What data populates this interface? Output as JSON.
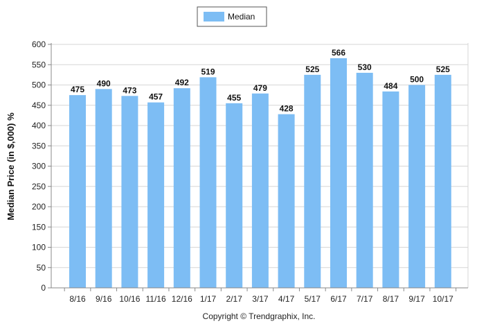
{
  "chart_data": {
    "type": "bar",
    "categories": [
      "8/16",
      "9/16",
      "10/16",
      "11/16",
      "12/16",
      "1/17",
      "2/17",
      "3/17",
      "4/17",
      "5/17",
      "6/17",
      "7/17",
      "8/17",
      "9/17",
      "10/17"
    ],
    "series": [
      {
        "name": "Median",
        "values": [
          475,
          490,
          473,
          457,
          492,
          519,
          455,
          479,
          428,
          525,
          566,
          530,
          484,
          500,
          525
        ]
      }
    ],
    "ylabel": "Median Price (in $,000) %",
    "xlabel": "",
    "ylim": [
      0,
      600
    ],
    "yticks": [
      0,
      50,
      100,
      150,
      200,
      250,
      300,
      350,
      400,
      450,
      500,
      550,
      600
    ],
    "grid": true,
    "legend_position": "top-center",
    "bar_color": "#7dbdf4",
    "footer": "Copyright © Trendgraphix, Inc."
  }
}
